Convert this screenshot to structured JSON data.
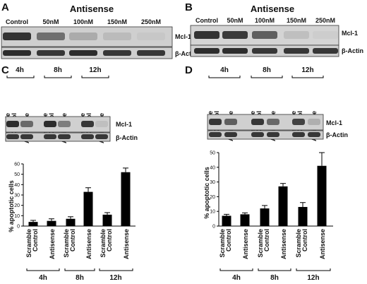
{
  "panels": {
    "A": {
      "label": "A",
      "header": "Antisense",
      "lanes": [
        "Control",
        "50nM",
        "100nM",
        "150nM",
        "250nM"
      ],
      "proteins": [
        "Mcl-1",
        "β-Actin"
      ],
      "mcl_intensity": [
        0.82,
        0.52,
        0.22,
        0.14,
        0.08
      ]
    },
    "B": {
      "label": "B",
      "header": "Antisense",
      "lanes": [
        "Control",
        "50nM",
        "100nM",
        "150nM",
        "250nM"
      ],
      "proteins": [
        "Mcl-1",
        "β-Actin"
      ],
      "mcl_intensity": [
        0.82,
        0.78,
        0.6,
        0.12,
        0.05
      ]
    },
    "C": {
      "label": "C",
      "times": [
        "4h",
        "8h",
        "12h"
      ],
      "blot_lanes": [
        "Scramble Control",
        "Antisense",
        "Scramble Control",
        "Antisense",
        "Scramble Control",
        "Antisense"
      ],
      "proteins": [
        "Mcl-1",
        "β-Actin"
      ],
      "mcl_intensity": [
        0.85,
        0.55,
        0.85,
        0.45,
        0.8,
        0.12
      ],
      "x_lane_labels": [
        "Scramble Control",
        "Antisense",
        "Scramble Control",
        "Antisense",
        "Scramble Control",
        "Antisense"
      ],
      "x_times": [
        "4h",
        "8h",
        "12h"
      ]
    },
    "D": {
      "label": "D",
      "times": [
        "4h",
        "8h",
        "12h"
      ],
      "blot_lanes": [
        "Scramble Control",
        "Antisense",
        "Scramble Control",
        "Antisense",
        "Scramble Control",
        "Antisense"
      ],
      "proteins": [
        "Mcl-1",
        "β-Actin"
      ],
      "mcl_intensity": [
        0.8,
        0.6,
        0.8,
        0.55,
        0.75,
        0.2
      ],
      "x_lane_labels": [
        "Scramble Control",
        "Antisense",
        "Scramble Control",
        "Antisense",
        "Scramble Control",
        "Antisense"
      ],
      "x_times": [
        "4h",
        "8h",
        "12h"
      ]
    }
  },
  "chart_data": [
    {
      "type": "bar",
      "panel": "C",
      "categories": [
        "Scramble Control 4h",
        "Antisense 4h",
        "Scramble Control 8h",
        "Antisense 8h",
        "Scramble Control 12h",
        "Antisense 12h"
      ],
      "values": [
        4,
        5,
        7,
        33,
        11,
        52
      ],
      "errors": [
        1.5,
        2,
        2,
        4,
        2,
        4
      ],
      "ylabel": "% apoptotic cells",
      "ylim": [
        0,
        60
      ],
      "yticks": [
        0,
        10,
        20,
        30,
        40,
        50,
        60
      ]
    },
    {
      "type": "bar",
      "panel": "D",
      "categories": [
        "Scramble Control 4h",
        "Antisense 4h",
        "Scramble Control 8h",
        "Antisense 8h",
        "Scramble Control 12h",
        "Antisense 12h"
      ],
      "values": [
        7,
        8,
        12,
        27,
        13,
        41
      ],
      "errors": [
        1,
        1,
        2,
        2,
        3,
        9
      ],
      "ylabel": "% apoptotic cells",
      "ylim": [
        0,
        50
      ],
      "yticks": [
        0,
        10,
        20,
        30,
        40,
        50
      ]
    }
  ]
}
